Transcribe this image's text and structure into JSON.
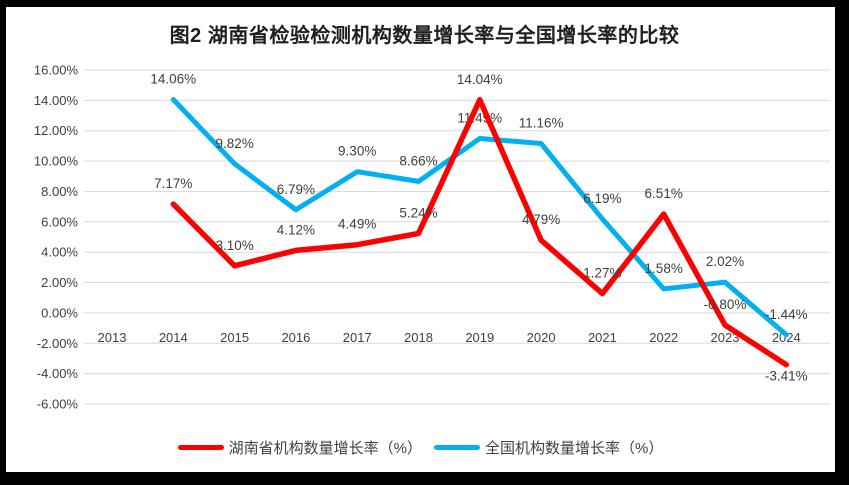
{
  "chart_data": {
    "type": "line",
    "title": "图2 湖南省检验检测机构数量增长率与全国增长率的比较",
    "categories": [
      "2013",
      "2014",
      "2015",
      "2016",
      "2017",
      "2018",
      "2019",
      "2020",
      "2021",
      "2022",
      "2023",
      "2024"
    ],
    "series": [
      {
        "name": "湖南省机构数量增长率（%）",
        "color": "#FE0000",
        "values": [
          null,
          7.17,
          3.1,
          4.12,
          4.49,
          5.24,
          14.04,
          4.79,
          1.27,
          6.51,
          -0.8,
          -3.41
        ],
        "labels": [
          null,
          "7.17%",
          "3.10%",
          "4.12%",
          "4.49%",
          "5.24%",
          "14.04%",
          "4.79%",
          "1.27%",
          "6.51%",
          "-0.80%",
          "-3.41%"
        ],
        "label_below_indices": [
          11
        ]
      },
      {
        "name": "全国机构数量增长率（%）",
        "color": "#00B0F0",
        "values": [
          null,
          14.06,
          9.82,
          6.79,
          9.3,
          8.66,
          11.49,
          11.16,
          6.19,
          1.58,
          2.02,
          -1.44
        ],
        "labels": [
          null,
          "14.06%",
          "9.82%",
          "6.79%",
          "9.30%",
          "8.66%",
          "11.49%",
          "11.16%",
          "6.19%",
          "1.58%",
          "2.02%",
          "-1.44%"
        ],
        "label_below_indices": []
      }
    ],
    "y_axis": {
      "min": -6,
      "max": 16,
      "step": 2,
      "tick_labels": [
        "16.00%",
        "14.00%",
        "12.00%",
        "10.00%",
        "8.00%",
        "6.00%",
        "4.00%",
        "2.00%",
        "0.00%",
        "-2.00%",
        "-4.00%",
        "-6.00%"
      ]
    },
    "x_axis": {
      "tick_labels": [
        "2013",
        "2014",
        "2015",
        "2016",
        "2017",
        "2018",
        "2019",
        "2020",
        "2021",
        "2022",
        "2023",
        "2024"
      ]
    },
    "grid": true,
    "legend_position": "bottom",
    "colors": {
      "gridline": "#D9D9D9",
      "tick_label": "#404040",
      "data_label": "#3F3F3F",
      "title": "#1F1F1F",
      "legend_text": "#404040",
      "frame": "#000000",
      "background": "#FFFFFF"
    }
  }
}
